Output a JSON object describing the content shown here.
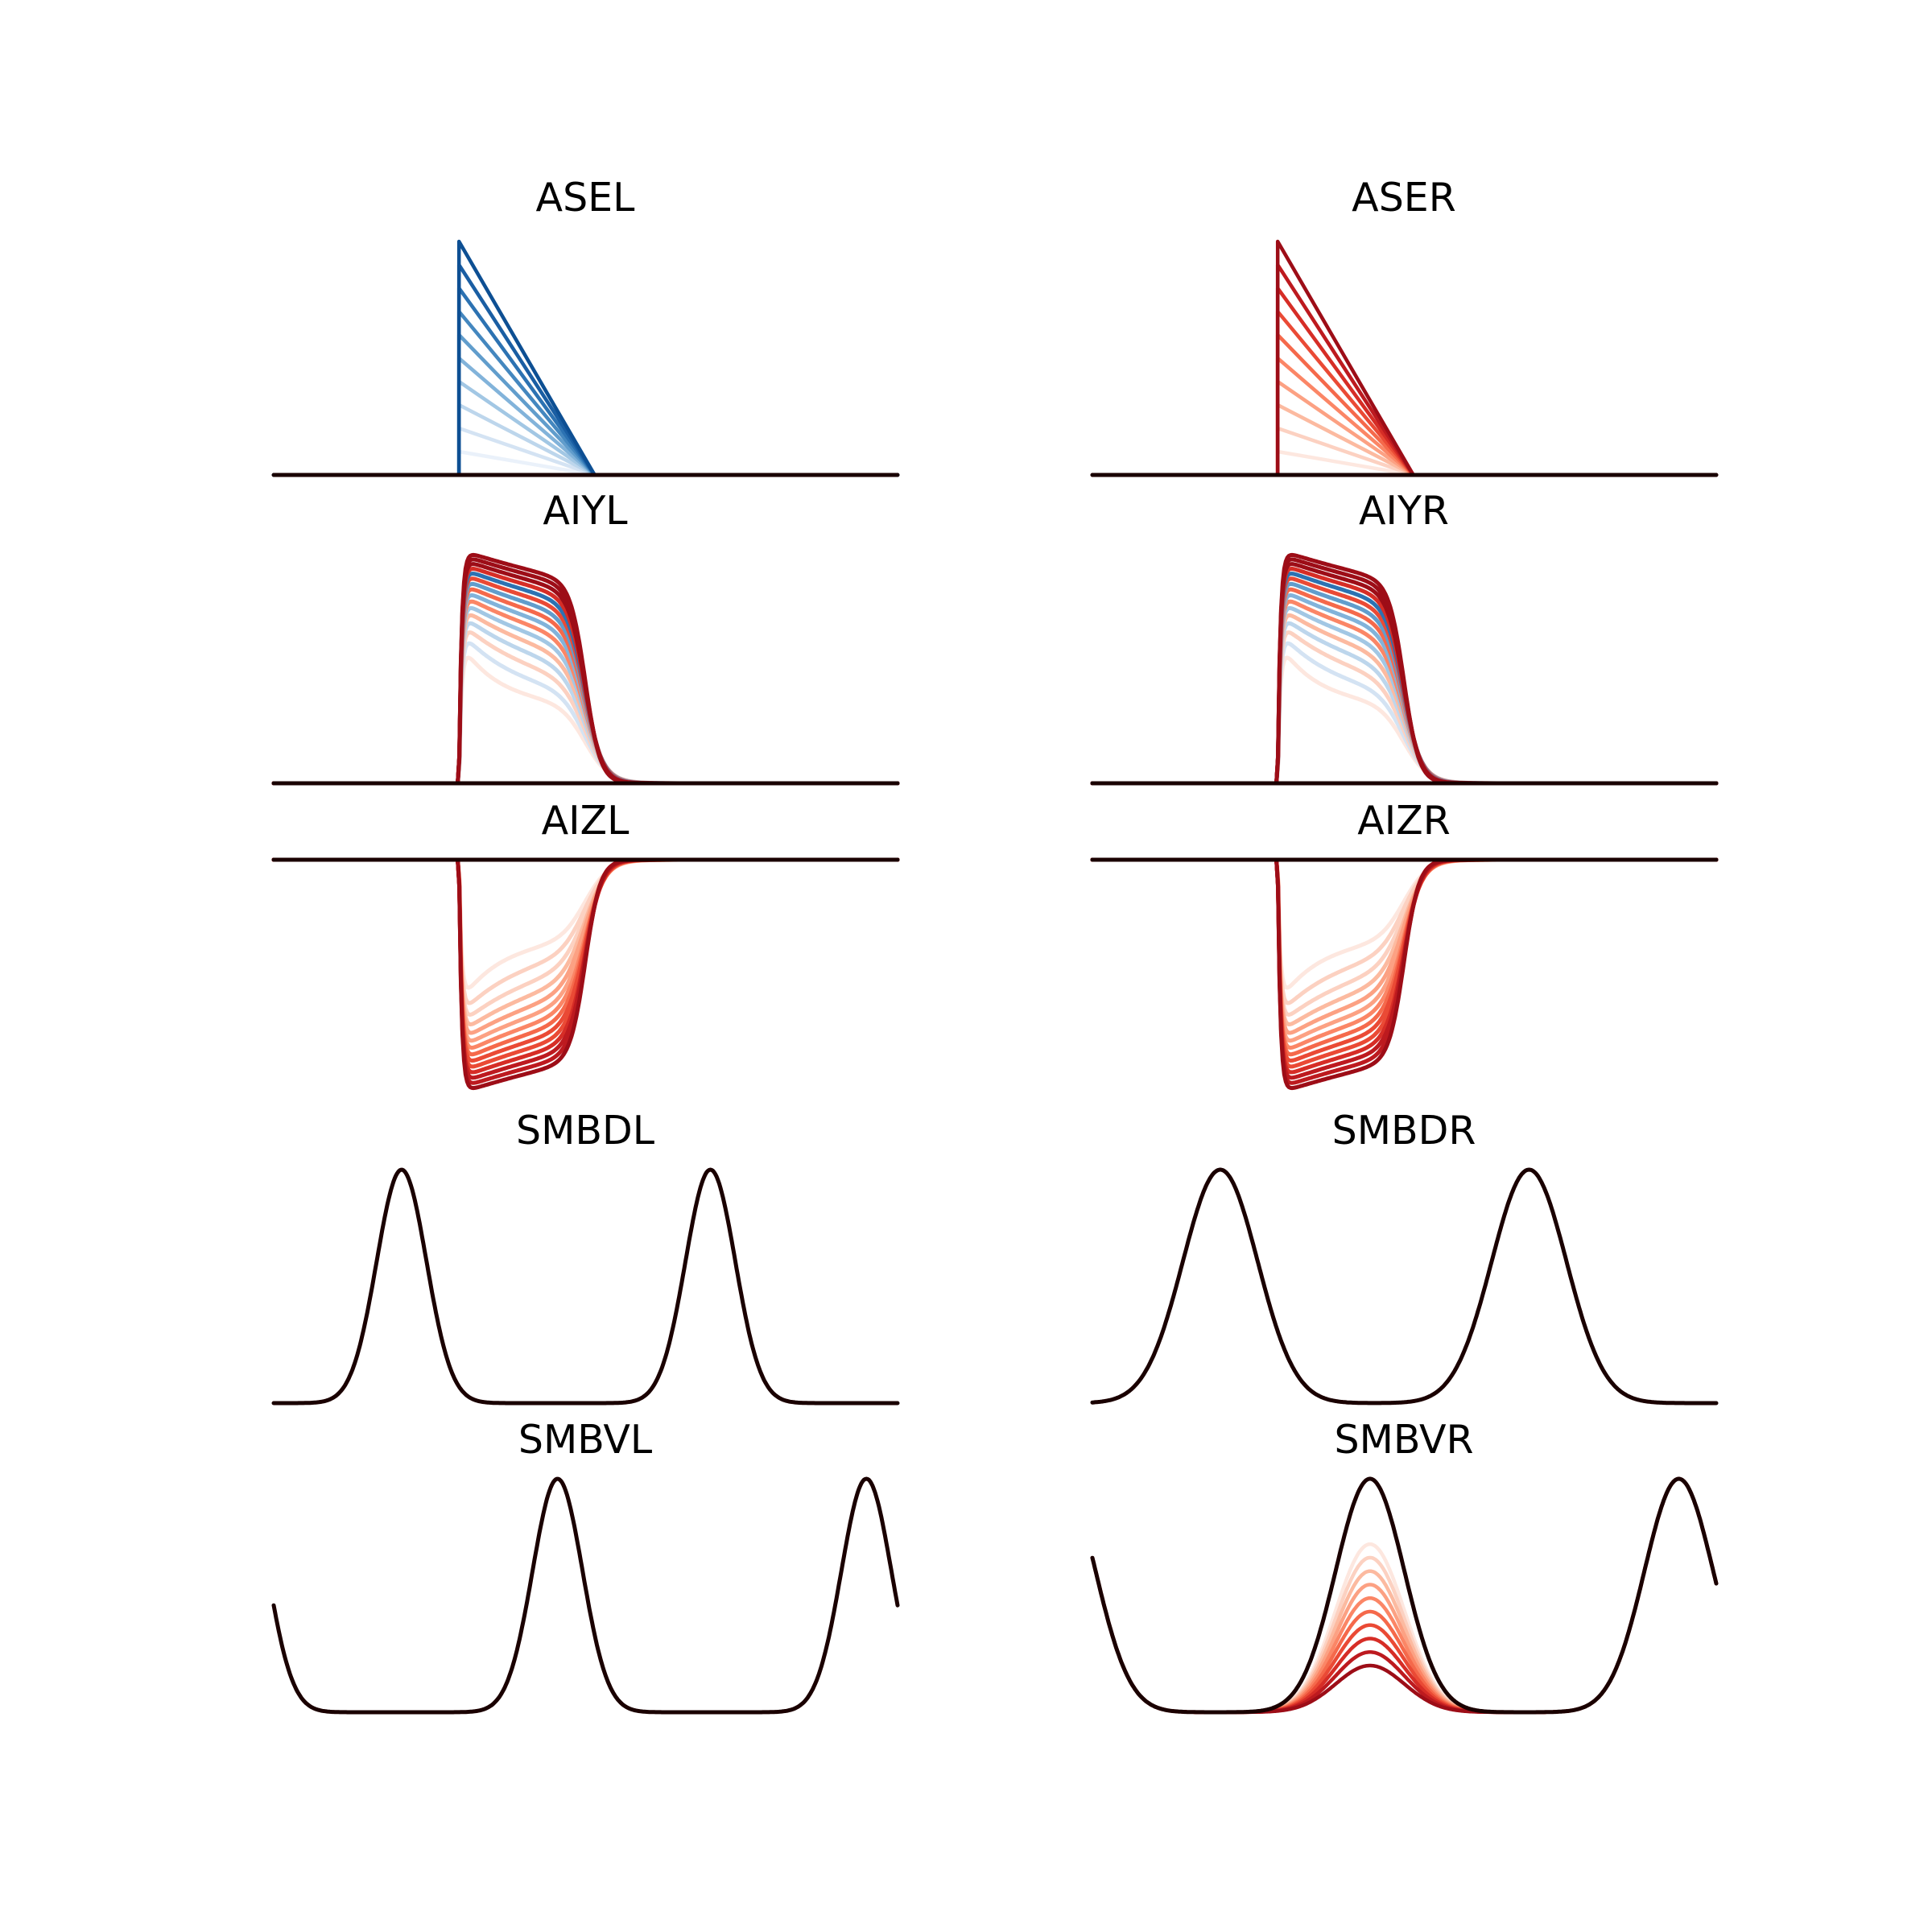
{
  "figure": {
    "background": "#ffffff",
    "trace_color_default": "#1a0000",
    "blue_scale": [
      "#eaf1fa",
      "#d4e3f3",
      "#bdd6ec",
      "#a2c7e4",
      "#82b3da",
      "#619dcc",
      "#4487bf",
      "#2c72b2",
      "#1a5ea3",
      "#0d4f93"
    ],
    "red_scale": [
      "#fde7df",
      "#fcd1c1",
      "#fcbaa0",
      "#fca183",
      "#fb8666",
      "#f5694b",
      "#ea4a35",
      "#d62d26",
      "#bd1a1f",
      "#9d0d17"
    ]
  },
  "chart_data": [
    {
      "type": "line",
      "title": "ASEL",
      "xlabel": "",
      "ylabel": "",
      "grid": false,
      "shape": "ramp",
      "sign": 1,
      "colorscale": "blue",
      "n_traces": 10,
      "x": [
        0,
        1
      ],
      "ylim": [
        0,
        1
      ]
    },
    {
      "type": "line",
      "title": "ASER",
      "xlabel": "",
      "ylabel": "",
      "grid": false,
      "shape": "ramp",
      "sign": 1,
      "colorscale": "red",
      "n_traces": 10,
      "x": [
        0,
        1
      ],
      "ylim": [
        0,
        1
      ]
    },
    {
      "type": "line",
      "title": "AIYL",
      "xlabel": "",
      "ylabel": "",
      "grid": false,
      "shape": "plateau",
      "sign": 1,
      "colorscale": "mixed",
      "n_traces": 16,
      "x": [
        0,
        1
      ],
      "ylim": [
        0,
        1
      ]
    },
    {
      "type": "line",
      "title": "AIYR",
      "xlabel": "",
      "ylabel": "",
      "grid": false,
      "shape": "plateau",
      "sign": 1,
      "colorscale": "mixed",
      "n_traces": 16,
      "x": [
        0,
        1
      ],
      "ylim": [
        0,
        1
      ]
    },
    {
      "type": "line",
      "title": "AIZL",
      "xlabel": "",
      "ylabel": "",
      "grid": false,
      "shape": "plateau",
      "sign": -1,
      "colorscale": "red",
      "n_traces": 14,
      "x": [
        0,
        1
      ],
      "ylim": [
        -1,
        0
      ]
    },
    {
      "type": "line",
      "title": "AIZR",
      "xlabel": "",
      "ylabel": "",
      "grid": false,
      "shape": "plateau",
      "sign": -1,
      "colorscale": "red",
      "n_traces": 14,
      "x": [
        0,
        1
      ],
      "ylim": [
        -1,
        0
      ]
    },
    {
      "type": "line",
      "title": "SMBDL",
      "xlabel": "",
      "ylabel": "",
      "grid": false,
      "shape": "peaks",
      "peak_centers": [
        0.205,
        0.7
      ],
      "peak_width": 0.04,
      "colorscale": "none",
      "x": [
        0,
        1
      ],
      "ylim": [
        0,
        1
      ]
    },
    {
      "type": "line",
      "title": "SMBDR",
      "xlabel": "",
      "ylabel": "",
      "grid": false,
      "shape": "peaks",
      "peak_centers": [
        0.205,
        0.7
      ],
      "peak_width": 0.06,
      "colorscale": "none",
      "x": [
        0,
        1
      ],
      "ylim": [
        0,
        1
      ]
    },
    {
      "type": "line",
      "title": "SMBVL",
      "xlabel": "",
      "ylabel": "",
      "grid": false,
      "shape": "peaks",
      "peak_centers": [
        -0.05,
        0.455,
        0.95
      ],
      "peak_width": 0.04,
      "colorscale": "none",
      "x": [
        0,
        1
      ],
      "ylim": [
        0,
        1
      ]
    },
    {
      "type": "line",
      "title": "SMBVR",
      "xlabel": "",
      "ylabel": "",
      "grid": false,
      "shape": "peaks",
      "peak_centers": [
        -0.05,
        0.445,
        0.94
      ],
      "peak_width": 0.055,
      "colorscale": "red",
      "n_traces": 10,
      "suppressed_peak_index": 1,
      "x": [
        0,
        1
      ],
      "ylim": [
        0,
        1
      ]
    }
  ]
}
